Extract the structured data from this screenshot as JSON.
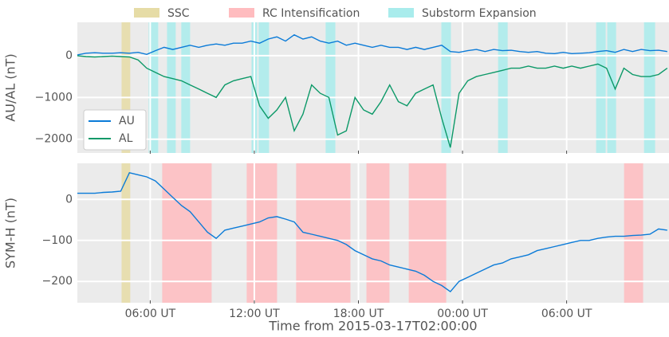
{
  "chart_data": {
    "type": "line",
    "xlabel": "Time from 2015-03-17T02:00:00",
    "xlim": [
      -0.2,
      33.9
    ],
    "xticks": [
      {
        "value": 4,
        "label": "06:00 UT"
      },
      {
        "value": 10,
        "label": "12:00 UT"
      },
      {
        "value": 16,
        "label": "18:00 UT"
      },
      {
        "value": 22,
        "label": "00:00 UT"
      },
      {
        "value": 28,
        "label": "06:00 UT"
      }
    ],
    "spans": [
      {
        "name": "SSC",
        "color": "#e6dca6",
        "top": [
          [
            2.35,
            2.85
          ]
        ],
        "bottom": [
          [
            2.35,
            2.85
          ]
        ]
      },
      {
        "name": "RC Intensification",
        "color": "#ffbcbf",
        "top": [],
        "bottom": [
          [
            4.69,
            7.54
          ],
          [
            9.56,
            11.31
          ],
          [
            12.41,
            15.54
          ],
          [
            16.46,
            17.79
          ],
          [
            18.9,
            21.06
          ],
          [
            31.31,
            32.41
          ]
        ]
      },
      {
        "name": "Substorm Expansion",
        "color": "#a9ecec",
        "top": [
          [
            3.91,
            4.46
          ],
          [
            4.97,
            5.47
          ],
          [
            5.79,
            6.3
          ],
          [
            9.84,
            10.16
          ],
          [
            10.25,
            10.85
          ],
          [
            14.11,
            14.67
          ],
          [
            20.78,
            21.33
          ],
          [
            24.05,
            24.6
          ],
          [
            29.7,
            30.25
          ],
          [
            30.34,
            30.85
          ],
          [
            32.46,
            33.1
          ]
        ],
        "bottom": []
      }
    ],
    "x": [
      -0.2,
      0.3,
      0.8,
      1.3,
      1.8,
      2.3,
      2.8,
      3.3,
      3.8,
      4.3,
      4.8,
      5.3,
      5.8,
      6.3,
      6.8,
      7.3,
      7.8,
      8.3,
      8.8,
      9.3,
      9.8,
      10.3,
      10.8,
      11.3,
      11.8,
      12.3,
      12.8,
      13.3,
      13.8,
      14.3,
      14.8,
      15.3,
      15.8,
      16.3,
      16.8,
      17.3,
      17.8,
      18.3,
      18.8,
      19.3,
      19.8,
      20.3,
      20.8,
      21.3,
      21.8,
      22.3,
      22.8,
      23.3,
      23.8,
      24.3,
      24.8,
      25.3,
      25.8,
      26.3,
      26.8,
      27.3,
      27.8,
      28.3,
      28.8,
      29.3,
      29.8,
      30.3,
      30.8,
      31.3,
      31.8,
      32.3,
      32.8,
      33.3,
      33.8
    ],
    "panels": [
      {
        "ylabel": "AU/AL (nT)",
        "ylim": [
          -2330,
          800
        ],
        "yticks": [
          0,
          {
            "value": -1000,
            "label": "−1000"
          },
          {
            "value": -2000,
            "label": "−2000"
          }
        ],
        "legend": "lower left",
        "series": [
          {
            "name": "AU",
            "color": "#0b7bd8",
            "values": [
              20,
              60,
              70,
              60,
              60,
              70,
              60,
              80,
              30,
              120,
              200,
              150,
              200,
              250,
              200,
              250,
              280,
              250,
              300,
              300,
              350,
              300,
              400,
              450,
              350,
              500,
              400,
              450,
              350,
              300,
              350,
              250,
              300,
              250,
              200,
              250,
              200,
              200,
              150,
              200,
              150,
              200,
              250,
              100,
              80,
              120,
              150,
              100,
              150,
              120,
              130,
              100,
              80,
              100,
              60,
              50,
              80,
              50,
              60,
              70,
              100,
              120,
              80,
              150,
              100,
              150,
              120,
              130,
              100
            ]
          },
          {
            "name": "AL",
            "color": "#0c9968",
            "values": [
              0,
              -20,
              -30,
              -20,
              -10,
              -20,
              -30,
              -100,
              -300,
              -400,
              -500,
              -550,
              -600,
              -700,
              -800,
              -900,
              -1000,
              -700,
              -600,
              -550,
              -500,
              -1200,
              -1500,
              -1300,
              -1000,
              -1800,
              -1400,
              -700,
              -900,
              -1000,
              -1900,
              -1800,
              -1000,
              -1300,
              -1400,
              -1100,
              -700,
              -1100,
              -1200,
              -900,
              -800,
              -700,
              -1500,
              -2200,
              -900,
              -600,
              -500,
              -450,
              -400,
              -350,
              -300,
              -300,
              -250,
              -300,
              -300,
              -250,
              -300,
              -250,
              -300,
              -250,
              -200,
              -300,
              -800,
              -300,
              -450,
              -500,
              -500,
              -450,
              -300
            ]
          }
        ]
      },
      {
        "ylabel": "SYM-H (nT)",
        "ylim": [
          -252,
          88
        ],
        "yticks": [
          0,
          {
            "value": -100,
            "label": "−100"
          },
          {
            "value": -200,
            "label": "−200"
          }
        ],
        "series": [
          {
            "color": "#0b7bd8",
            "values": [
              15,
              15,
              15,
              17,
              18,
              20,
              65,
              60,
              55,
              45,
              25,
              5,
              -15,
              -30,
              -55,
              -80,
              -95,
              -75,
              -70,
              -65,
              -60,
              -55,
              -45,
              -42,
              -48,
              -55,
              -80,
              -85,
              -90,
              -95,
              -100,
              -110,
              -125,
              -135,
              -145,
              -150,
              -160,
              -165,
              -170,
              -175,
              -185,
              -200,
              -210,
              -225,
              -200,
              -190,
              -180,
              -170,
              -160,
              -155,
              -145,
              -140,
              -135,
              -125,
              -120,
              -115,
              -110,
              -105,
              -100,
              -100,
              -95,
              -92,
              -90,
              -90,
              -88,
              -87,
              -85,
              -72,
              -75
            ]
          }
        ]
      }
    ]
  }
}
